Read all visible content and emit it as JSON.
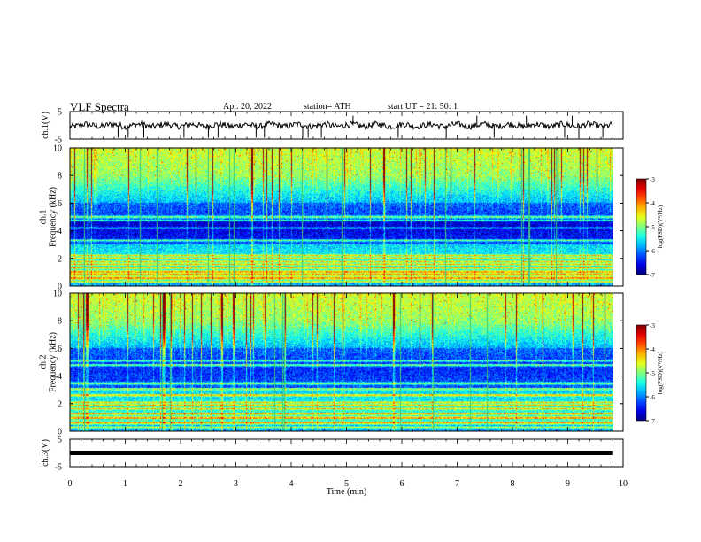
{
  "header": {
    "title": "VLF  Spectra",
    "date": "Apr. 20, 2022",
    "station": "station= ATH",
    "start": "start  UT  =    21: 50: 1"
  },
  "chart_data": [
    {
      "type": "line",
      "name": "ch1-waveform",
      "ylabel": "ch.1(V)",
      "yticks": [
        "5",
        "-5"
      ],
      "ylim": [
        -5,
        5
      ],
      "xlim": [
        0,
        10
      ],
      "approx_level": 0,
      "xdata_end": 9.82
    },
    {
      "type": "heatmap",
      "name": "ch1-spectrogram",
      "ylabel": "ch.1\nFrequency  (kHz)",
      "yticks": [
        "0",
        "2",
        "4",
        "6",
        "8",
        "10"
      ],
      "ylim": [
        0,
        10
      ],
      "xlim": [
        0,
        10
      ],
      "xdata_end": 9.82,
      "colorbar": {
        "label": "log(PSD)(V²/Hz)",
        "ticks": [
          "-3",
          "-4",
          "-5",
          "-6",
          "-7"
        ],
        "range": [
          -7,
          -3
        ]
      }
    },
    {
      "type": "heatmap",
      "name": "ch2-spectrogram",
      "ylabel": "ch.2\nFrequency  (kHz)",
      "yticks": [
        "0",
        "2",
        "4",
        "6",
        "8",
        "10"
      ],
      "ylim": [
        0,
        10
      ],
      "xlim": [
        0,
        10
      ],
      "xdata_end": 9.82,
      "colorbar": {
        "label": "log(PSD)(V²/Hz)",
        "ticks": [
          "-3",
          "-4",
          "-5",
          "-6",
          "-7"
        ],
        "range": [
          -7,
          -3
        ]
      }
    },
    {
      "type": "line",
      "name": "ch3-waveform",
      "ylabel": "ch.3(V)",
      "yticks": [
        "5",
        "-5"
      ],
      "ylim": [
        -5,
        5
      ],
      "xlim": [
        0,
        10
      ],
      "approx_level": 0,
      "xdata_end": 9.82,
      "xlabel": "Time  (min)",
      "xticks": [
        "0",
        "1",
        "2",
        "3",
        "4",
        "5",
        "6",
        "7",
        "8",
        "9",
        "10"
      ]
    }
  ]
}
